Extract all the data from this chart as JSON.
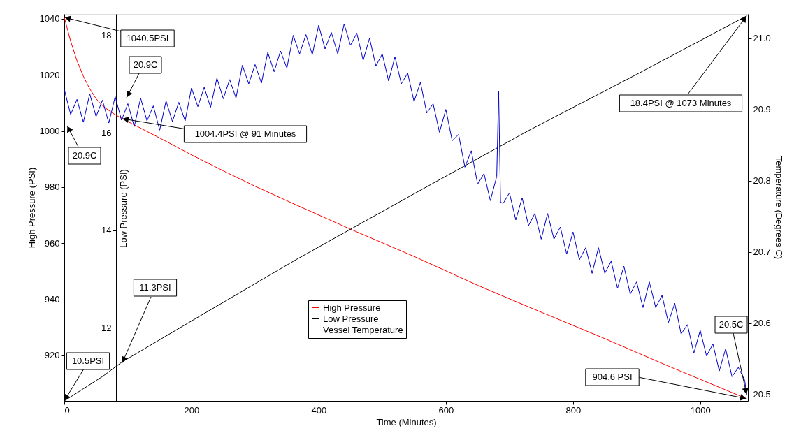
{
  "chart_data": {
    "type": "line",
    "xlabel": "Time (Minutes)",
    "ylabel": "High Pressure (PSI)",
    "y2label": "Low Pressure (PSI)",
    "y3label": "Temperature (Degrees C)",
    "xlim": [
      0,
      1075
    ],
    "xticks": [
      0,
      200,
      400,
      600,
      800,
      1000
    ],
    "ylim": [
      903.8,
      1041.7
    ],
    "yticks": [
      920,
      940,
      960,
      980,
      1000,
      1020,
      1040
    ],
    "y2lim": [
      10.5,
      18.44
    ],
    "y2ticks": [
      12,
      14,
      16,
      18
    ],
    "y3lim": [
      20.491,
      21.034
    ],
    "y3ticks": [
      {
        "value": 20.5,
        "label": "20.5"
      },
      {
        "value": 20.6,
        "label": "20.6"
      },
      {
        "value": 20.7,
        "label": "20.7"
      },
      {
        "value": 20.8,
        "label": "20.8"
      },
      {
        "value": 20.9,
        "label": "20.9"
      },
      {
        "value": 21.0,
        "label": "21.0"
      }
    ],
    "grid": false,
    "legend": "bottom",
    "marker": "none",
    "line_style": "solid",
    "series": [
      {
        "name": "High Pressure",
        "color": "#ff0000",
        "axis": "y",
        "x": [
          0,
          10,
          20,
          30,
          40,
          50,
          60,
          75,
          91,
          150,
          200,
          250,
          300,
          366,
          450,
          550,
          650,
          729,
          850,
          950,
          1073
        ],
        "values": [
          1040.5,
          1032,
          1025,
          1019.5,
          1015,
          1011.5,
          1009,
          1006.5,
          1004.4,
          997.5,
          991.5,
          985.8,
          980.3,
          973.5,
          965.0,
          955.3,
          945.0,
          937.4,
          926.0,
          916.2,
          904.6
        ]
      },
      {
        "name": "Low Pressure",
        "color": "#000000",
        "axis": "y2",
        "x": [
          0,
          30,
          60,
          91,
          200,
          366,
          550,
          729,
          900,
          1073
        ],
        "values": [
          10.5,
          10.75,
          11.0,
          11.3,
          12.14,
          13.41,
          14.75,
          16.04,
          17.2,
          18.4
        ]
      },
      {
        "name": "Vessel Temperature",
        "color": "#0000cc",
        "axis": "y3",
        "x": [
          0,
          10,
          20,
          30,
          40,
          50,
          60,
          70,
          80,
          90,
          100,
          110,
          120,
          130,
          140,
          150,
          160,
          170,
          180,
          190,
          200,
          210,
          220,
          230,
          240,
          250,
          260,
          270,
          280,
          290,
          300,
          310,
          320,
          330,
          340,
          350,
          360,
          370,
          380,
          390,
          400,
          410,
          420,
          430,
          440,
          450,
          460,
          470,
          480,
          490,
          500,
          510,
          520,
          530,
          540,
          550,
          560,
          570,
          580,
          590,
          600,
          610,
          620,
          630,
          640,
          650,
          660,
          670,
          680,
          683,
          686,
          690,
          700,
          710,
          720,
          730,
          740,
          750,
          760,
          770,
          780,
          790,
          800,
          810,
          820,
          830,
          840,
          850,
          860,
          870,
          880,
          890,
          900,
          910,
          920,
          930,
          940,
          950,
          960,
          970,
          980,
          990,
          1000,
          1010,
          1020,
          1030,
          1040,
          1050,
          1060,
          1070,
          1073
        ],
        "values": [
          20.928,
          20.893,
          20.914,
          20.882,
          20.922,
          20.89,
          20.913,
          20.881,
          20.918,
          20.885,
          20.908,
          20.876,
          20.916,
          20.884,
          20.905,
          20.871,
          20.912,
          20.883,
          20.91,
          20.884,
          20.93,
          20.904,
          20.931,
          20.903,
          20.944,
          20.915,
          20.942,
          20.916,
          20.962,
          20.936,
          20.963,
          20.937,
          20.98,
          20.953,
          20.982,
          20.958,
          21.004,
          20.978,
          21.005,
          20.977,
          21.018,
          20.985,
          21.008,
          20.978,
          21.02,
          20.99,
          21.007,
          20.969,
          21.0,
          20.961,
          20.978,
          20.94,
          20.974,
          20.936,
          20.951,
          20.911,
          20.938,
          20.895,
          20.908,
          20.868,
          20.9,
          20.856,
          20.865,
          20.819,
          20.842,
          20.795,
          20.81,
          20.772,
          20.806,
          20.926,
          20.77,
          20.768,
          20.783,
          20.745,
          20.776,
          20.737,
          20.754,
          20.718,
          20.754,
          20.718,
          20.735,
          20.697,
          20.728,
          20.689,
          20.706,
          20.67,
          20.706,
          20.67,
          20.687,
          20.649,
          20.68,
          20.641,
          20.658,
          20.622,
          20.658,
          20.622,
          20.639,
          20.601,
          20.628,
          20.585,
          20.598,
          20.558,
          20.59,
          20.554,
          20.571,
          20.533,
          20.564,
          20.525,
          20.538,
          20.52,
          20.5
        ]
      }
    ],
    "annotations": [
      {
        "text": "1040.5PSI",
        "x": 0,
        "y": 1040.5
      },
      "20.9C",
      {
        "text": "1004.4PSI @ 91 Minutes",
        "x": 91,
        "y": 1004.4
      },
      "20.9C",
      {
        "text": "11.3PSI",
        "x": 91,
        "y": 917.3
      },
      {
        "text": "10.5PSI",
        "x": 0,
        "y": 903.8
      },
      {
        "text": "18.4PSI @ 1073 Minutes",
        "x": 1073,
        "y": 1041.0
      },
      {
        "text": "904.6 PSI",
        "x": 1073,
        "y": 904.6
      },
      {
        "text": "20.5C",
        "x": 1073,
        "y": 906.1
      }
    ]
  }
}
